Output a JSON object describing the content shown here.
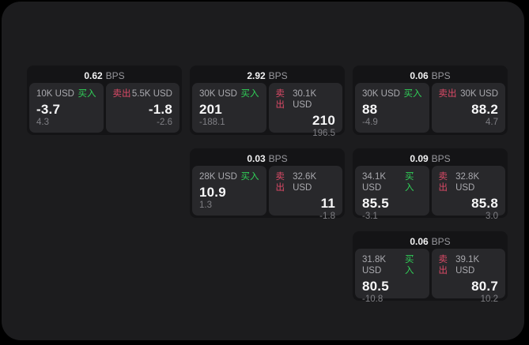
{
  "theme": {
    "page_bg": "#000000",
    "surface_bg": "#1c1c1e",
    "card_bg": "#141416",
    "tile_bg": "#28282b",
    "buy_color": "#30d158",
    "sell_color": "#dd4a67",
    "text_primary": "#f7f7f8",
    "text_secondary": "#a9a9ae",
    "text_muted": "#7f7f84"
  },
  "labels": {
    "bps": "BPS",
    "buy": "买入",
    "sell": "卖出"
  },
  "cards": [
    {
      "bps": "0.62",
      "buy": {
        "amount": "10K USD",
        "main": "-3.7",
        "sub": "4.3"
      },
      "sell": {
        "amount": "5.5K USD",
        "main": "-1.8",
        "sub": "-2.6"
      }
    },
    {
      "bps": "2.92",
      "buy": {
        "amount": "30K USD",
        "main": "201",
        "sub": "-188.1"
      },
      "sell": {
        "amount": "30.1K USD",
        "main": "210",
        "sub": "196.5"
      }
    },
    {
      "bps": "0.06",
      "buy": {
        "amount": "30K USD",
        "main": "88",
        "sub": "-4.9"
      },
      "sell": {
        "amount": "30K USD",
        "main": "88.2",
        "sub": "4.7"
      }
    },
    {
      "bps": "0.03",
      "buy": {
        "amount": "28K USD",
        "main": "10.9",
        "sub": "1.3"
      },
      "sell": {
        "amount": "32.6K USD",
        "main": "11",
        "sub": "-1.8"
      }
    },
    {
      "bps": "0.09",
      "buy": {
        "amount": "34.1K USD",
        "main": "85.5",
        "sub": "-3.1"
      },
      "sell": {
        "amount": "32.8K USD",
        "main": "85.8",
        "sub": "3.0"
      }
    },
    {
      "bps": "0.06",
      "buy": {
        "amount": "31.8K USD",
        "main": "80.5",
        "sub": "-10.8"
      },
      "sell": {
        "amount": "39.1K USD",
        "main": "80.7",
        "sub": "10.2"
      }
    }
  ]
}
